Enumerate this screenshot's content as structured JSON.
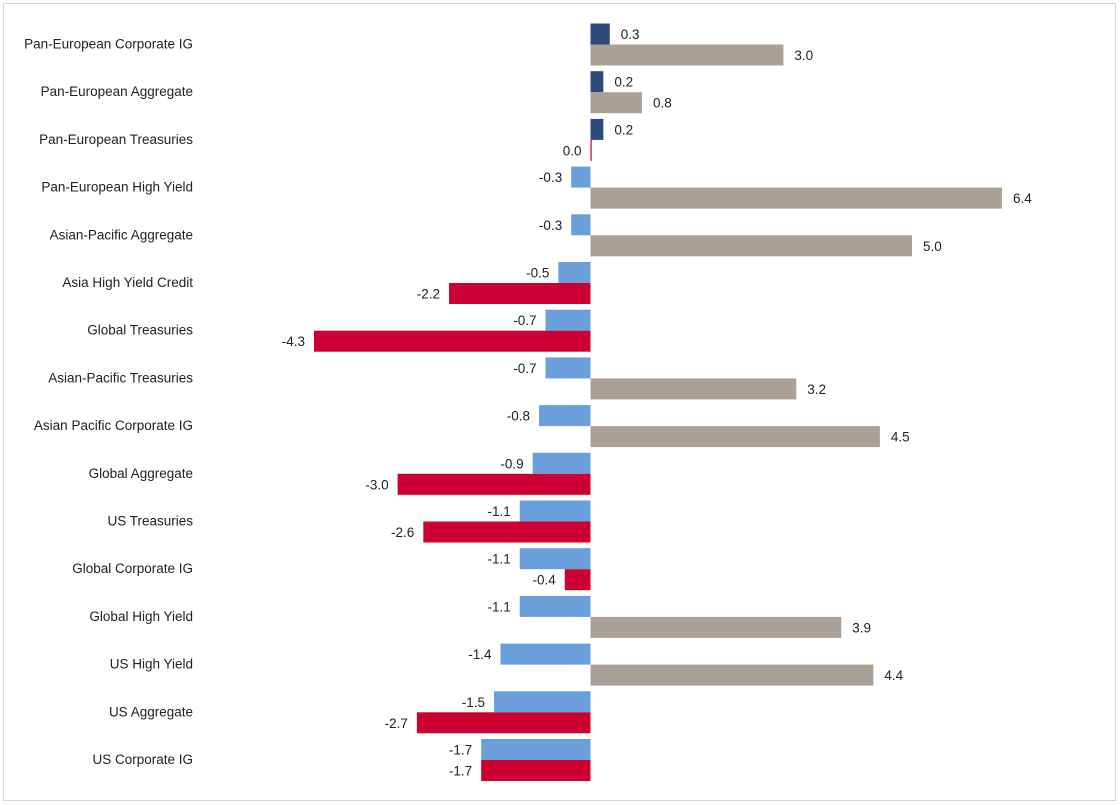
{
  "chart_data": {
    "type": "bar",
    "orientation": "horizontal",
    "categories": [
      "Pan-European Corporate IG",
      "Pan-European Aggregate",
      "Pan-European Treasuries",
      "Pan-European High Yield",
      "Asian-Pacific Aggregate",
      "Asia High Yield Credit",
      "Global Treasuries",
      "Asian-Pacific Treasuries",
      "Asian Pacific Corporate IG",
      "Global Aggregate",
      "US Treasuries",
      "Global Corporate IG",
      "Global High Yield",
      "US High Yield",
      "US Aggregate",
      "US Corporate IG"
    ],
    "series": [
      {
        "values": [
          0.3,
          0.2,
          0.2,
          -0.3,
          -0.3,
          -0.5,
          -0.7,
          -0.7,
          -0.8,
          -0.9,
          -1.1,
          -1.1,
          -1.1,
          -1.4,
          -1.5,
          -1.7
        ],
        "labels": [
          "0.3",
          "0.2",
          "0.2",
          "-0.3",
          "-0.3",
          "-0.5",
          "-0.7",
          "-0.7",
          "-0.8",
          "-0.9",
          "-1.1",
          "-1.1",
          "-1.1",
          "-1.4",
          "-1.5",
          "-1.7"
        ],
        "colors": {
          "positive": "#2e4a7a",
          "negative": "#6a9fdc"
        }
      },
      {
        "values": [
          3.0,
          0.8,
          0.0,
          6.4,
          5.0,
          -2.2,
          -4.3,
          3.2,
          4.5,
          -3.0,
          -2.6,
          -0.4,
          3.9,
          4.4,
          -2.7,
          -1.7
        ],
        "labels": [
          "3.0",
          "0.8",
          "0.0",
          "6.4",
          "5.0",
          "-2.2",
          "-4.3",
          "3.2",
          "4.5",
          "-3.0",
          "-2.6",
          "-0.4",
          "3.9",
          "4.4",
          "-2.7",
          "-1.7"
        ],
        "colors": {
          "positive": "#aaa095",
          "negative": "#cc0033"
        }
      }
    ],
    "xlim": [
      -4.6,
      7.0
    ],
    "grid": false,
    "legend": "none"
  }
}
